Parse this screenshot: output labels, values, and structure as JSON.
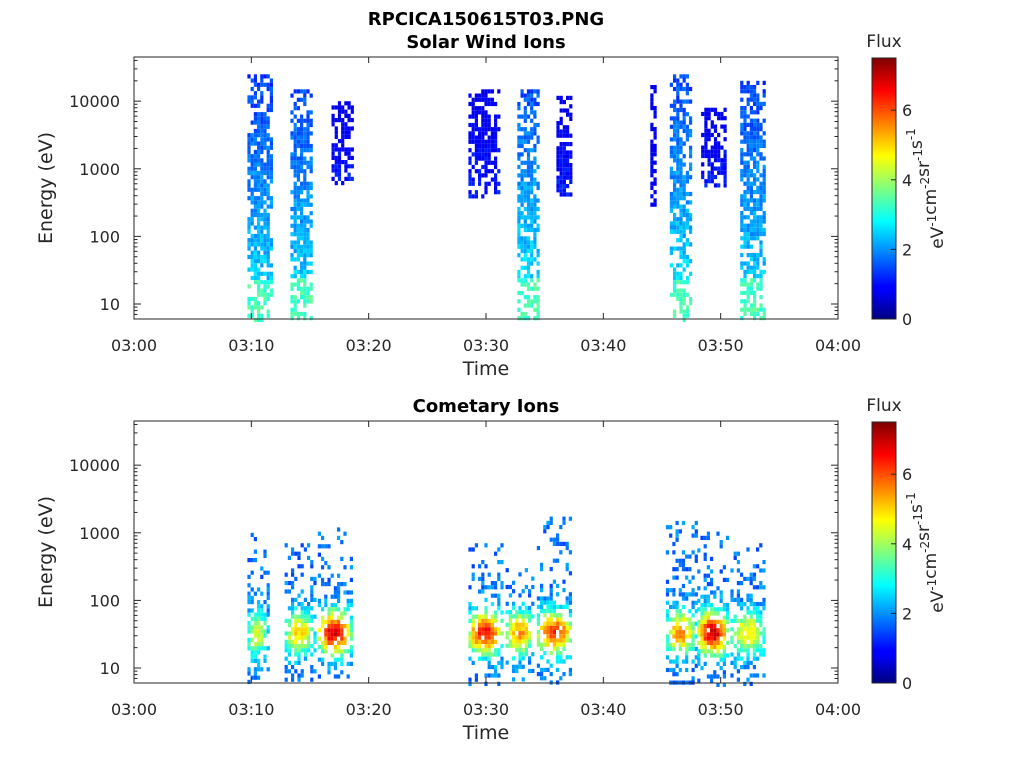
{
  "figure": {
    "filename": "RPCICA150615T03.PNG"
  },
  "colorbar": {
    "title": "Flux",
    "unit_parts": [
      "eV",
      "-1",
      "cm",
      "-2",
      "sr",
      "-1",
      "s",
      "-1"
    ],
    "ticks": [
      "0",
      "2",
      "4",
      "6"
    ],
    "range": [
      0,
      7.5
    ],
    "colormap": "jet"
  },
  "chart_data": [
    {
      "type": "heatmap",
      "title": "Solar Wind Ions",
      "xlabel": "Time",
      "ylabel": "Energy (eV)",
      "x_ticks": [
        "03:00",
        "03:10",
        "03:20",
        "03:30",
        "03:40",
        "03:50",
        "04:00"
      ],
      "xlim": [
        "03:00",
        "04:00"
      ],
      "y_scale": "log",
      "y_ticks": [
        "10",
        "100",
        "1000",
        "10000"
      ],
      "ylim": [
        6,
        45000
      ],
      "grid": false,
      "bursts": [
        {
          "t_start": "03:09:40",
          "t_end": "03:11:50",
          "e_low": 6,
          "e_high": 25000,
          "flux_peak": 2.4
        },
        {
          "t_start": "03:13:20",
          "t_end": "03:15:10",
          "e_low": 6,
          "e_high": 15000,
          "flux_peak": 2.4
        },
        {
          "t_start": "03:16:50",
          "t_end": "03:18:40",
          "e_low": 600,
          "e_high": 10000,
          "flux_peak": 1.5
        },
        {
          "t_start": "03:28:30",
          "t_end": "03:31:00",
          "e_low": 400,
          "e_high": 15000,
          "flux_peak": 1.5
        },
        {
          "t_start": "03:32:40",
          "t_end": "03:34:20",
          "e_low": 6,
          "e_high": 15000,
          "flux_peak": 2.5
        },
        {
          "t_start": "03:36:00",
          "t_end": "03:37:20",
          "e_low": 400,
          "e_high": 12000,
          "flux_peak": 1.5
        },
        {
          "t_start": "03:44:00",
          "t_end": "03:44:30",
          "e_low": 300,
          "e_high": 20000,
          "flux_peak": 1.2
        },
        {
          "t_start": "03:45:40",
          "t_end": "03:47:20",
          "e_low": 6,
          "e_high": 25000,
          "flux_peak": 2.5
        },
        {
          "t_start": "03:48:20",
          "t_end": "03:50:20",
          "e_low": 600,
          "e_high": 8000,
          "flux_peak": 1.5
        },
        {
          "t_start": "03:51:40",
          "t_end": "03:53:50",
          "e_low": 6,
          "e_high": 20000,
          "flux_peak": 2.4
        }
      ]
    },
    {
      "type": "heatmap",
      "title": "Cometary Ions",
      "xlabel": "Time",
      "ylabel": "Energy (eV)",
      "x_ticks": [
        "03:00",
        "03:10",
        "03:20",
        "03:30",
        "03:40",
        "03:50",
        "04:00"
      ],
      "xlim": [
        "03:00",
        "04:00"
      ],
      "y_scale": "log",
      "y_ticks": [
        "10",
        "100",
        "1000",
        "10000"
      ],
      "ylim": [
        6,
        45000
      ],
      "grid": false,
      "bursts": [
        {
          "t_start": "03:09:40",
          "t_end": "03:11:20",
          "e_low": 6,
          "e_high": 1000,
          "flux_peak": 4.5
        },
        {
          "t_start": "03:12:50",
          "t_end": "03:15:20",
          "e_low": 6,
          "e_high": 700,
          "flux_peak": 5.0
        },
        {
          "t_start": "03:15:40",
          "t_end": "03:18:30",
          "e_low": 8,
          "e_high": 1200,
          "flux_peak": 6.8
        },
        {
          "t_start": "03:28:30",
          "t_end": "03:31:20",
          "e_low": 6,
          "e_high": 700,
          "flux_peak": 6.5
        },
        {
          "t_start": "03:31:40",
          "t_end": "03:34:00",
          "e_low": 6,
          "e_high": 300,
          "flux_peak": 5.5
        },
        {
          "t_start": "03:34:20",
          "t_end": "03:37:20",
          "e_low": 6,
          "e_high": 2000,
          "flux_peak": 6.2
        },
        {
          "t_start": "03:45:20",
          "t_end": "03:47:50",
          "e_low": 6,
          "e_high": 1500,
          "flux_peak": 5.5
        },
        {
          "t_start": "03:48:00",
          "t_end": "03:50:40",
          "e_low": 6,
          "e_high": 1200,
          "flux_peak": 6.9
        },
        {
          "t_start": "03:50:50",
          "t_end": "03:53:50",
          "e_low": 6,
          "e_high": 700,
          "flux_peak": 4.8
        }
      ]
    }
  ]
}
